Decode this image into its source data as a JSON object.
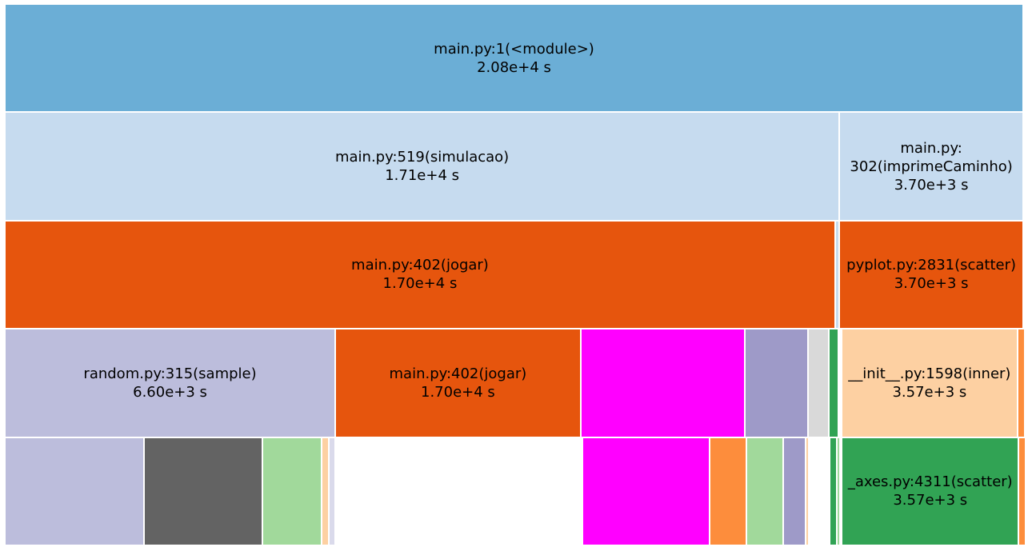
{
  "chart_data": {
    "type": "icicle",
    "total_seconds": 20800,
    "rows": [
      [
        {
          "label": "main.py:1(<module>)",
          "value": "2.08e+4 s",
          "frac": 1.0,
          "color": "#6baed6"
        }
      ],
      [
        {
          "label": "main.py:519(simulacao)",
          "value": "1.71e+4 s",
          "frac": 0.8195,
          "color": "#c6dbef"
        },
        {
          "label": "main.py:\n302(imprimeCaminho)",
          "value": "3.70e+3 s",
          "frac": 0.1805,
          "color": "#c6dbef"
        }
      ],
      [
        {
          "label": "main.py:402(jogar)",
          "value": "1.70e+4 s",
          "frac": 0.8153,
          "color": "#e6550d"
        },
        {
          "label": "",
          "value": "",
          "frac": 0.0042,
          "color": "#c6dbef"
        },
        {
          "label": "pyplot.py:2831(scatter)",
          "value": "3.70e+3 s",
          "frac": 0.1805,
          "color": "#e6550d"
        }
      ],
      [
        {
          "label": "random.py:315(sample)",
          "value": "6.60e+3 s",
          "frac": 0.3245,
          "color": "#bcbddc"
        },
        {
          "label": "main.py:402(jogar)",
          "value": "1.70e+4 s",
          "frac": 0.2409,
          "color": "#e6550d"
        },
        {
          "label": "",
          "value": "",
          "frac": 0.1614,
          "color": "#ff00ff"
        },
        {
          "label": "",
          "value": "",
          "frac": 0.0622,
          "color": "#9e9ac8"
        },
        {
          "label": "",
          "value": "",
          "frac": 0.0205,
          "color": "#d9d9d9"
        },
        {
          "label": "",
          "value": "",
          "frac": 0.0087,
          "color": "#31a354"
        },
        {
          "label": "",
          "value": "",
          "frac": 0.0031,
          "color": "#ffffff"
        },
        {
          "label": "__init__.py:1598(inner)",
          "value": "3.57e+3 s",
          "frac": 0.1734,
          "color": "#fdd0a2"
        },
        {
          "label": "",
          "value": "",
          "frac": 0.0071,
          "color": "#fd8d3c"
        }
      ],
      [
        {
          "label": "",
          "value": "",
          "frac": 0.137,
          "color": "#bcbddc"
        },
        {
          "label": "",
          "value": "",
          "frac": 0.1158,
          "color": "#636363"
        },
        {
          "label": "",
          "value": "",
          "frac": 0.0583,
          "color": "#a1d99b"
        },
        {
          "label": "",
          "value": "",
          "frac": 0.0071,
          "color": "#fdd0a2"
        },
        {
          "label": "",
          "value": "",
          "frac": 0.0063,
          "color": "#dadaeb"
        },
        {
          "label": "",
          "value": "",
          "frac": 0.2425,
          "color": "#ffffff"
        },
        {
          "label": "",
          "value": "",
          "frac": 0.1252,
          "color": "#ff00ff"
        },
        {
          "label": "",
          "value": "",
          "frac": 0.0362,
          "color": "#fd8d3c"
        },
        {
          "label": "",
          "value": "",
          "frac": 0.0362,
          "color": "#a1d99b"
        },
        {
          "label": "",
          "value": "",
          "frac": 0.022,
          "color": "#9e9ac8"
        },
        {
          "label": "",
          "value": "",
          "frac": 0.0031,
          "color": "#fdd0a2"
        },
        {
          "label": "",
          "value": "",
          "frac": 0.0205,
          "color": "#ffffff"
        },
        {
          "label": "",
          "value": "",
          "frac": 0.0071,
          "color": "#31a354"
        },
        {
          "label": "",
          "value": "",
          "frac": 0.0031,
          "color": "#a1d99b"
        },
        {
          "label": "",
          "value": "",
          "frac": 0.0016,
          "color": "#ffffff"
        },
        {
          "label": "_axes.py:4311(scatter)",
          "value": "3.57e+3 s",
          "frac": 0.1734,
          "color": "#31a354"
        },
        {
          "label": "",
          "value": "",
          "frac": 0.0071,
          "color": "#fd8d3c"
        }
      ]
    ]
  }
}
